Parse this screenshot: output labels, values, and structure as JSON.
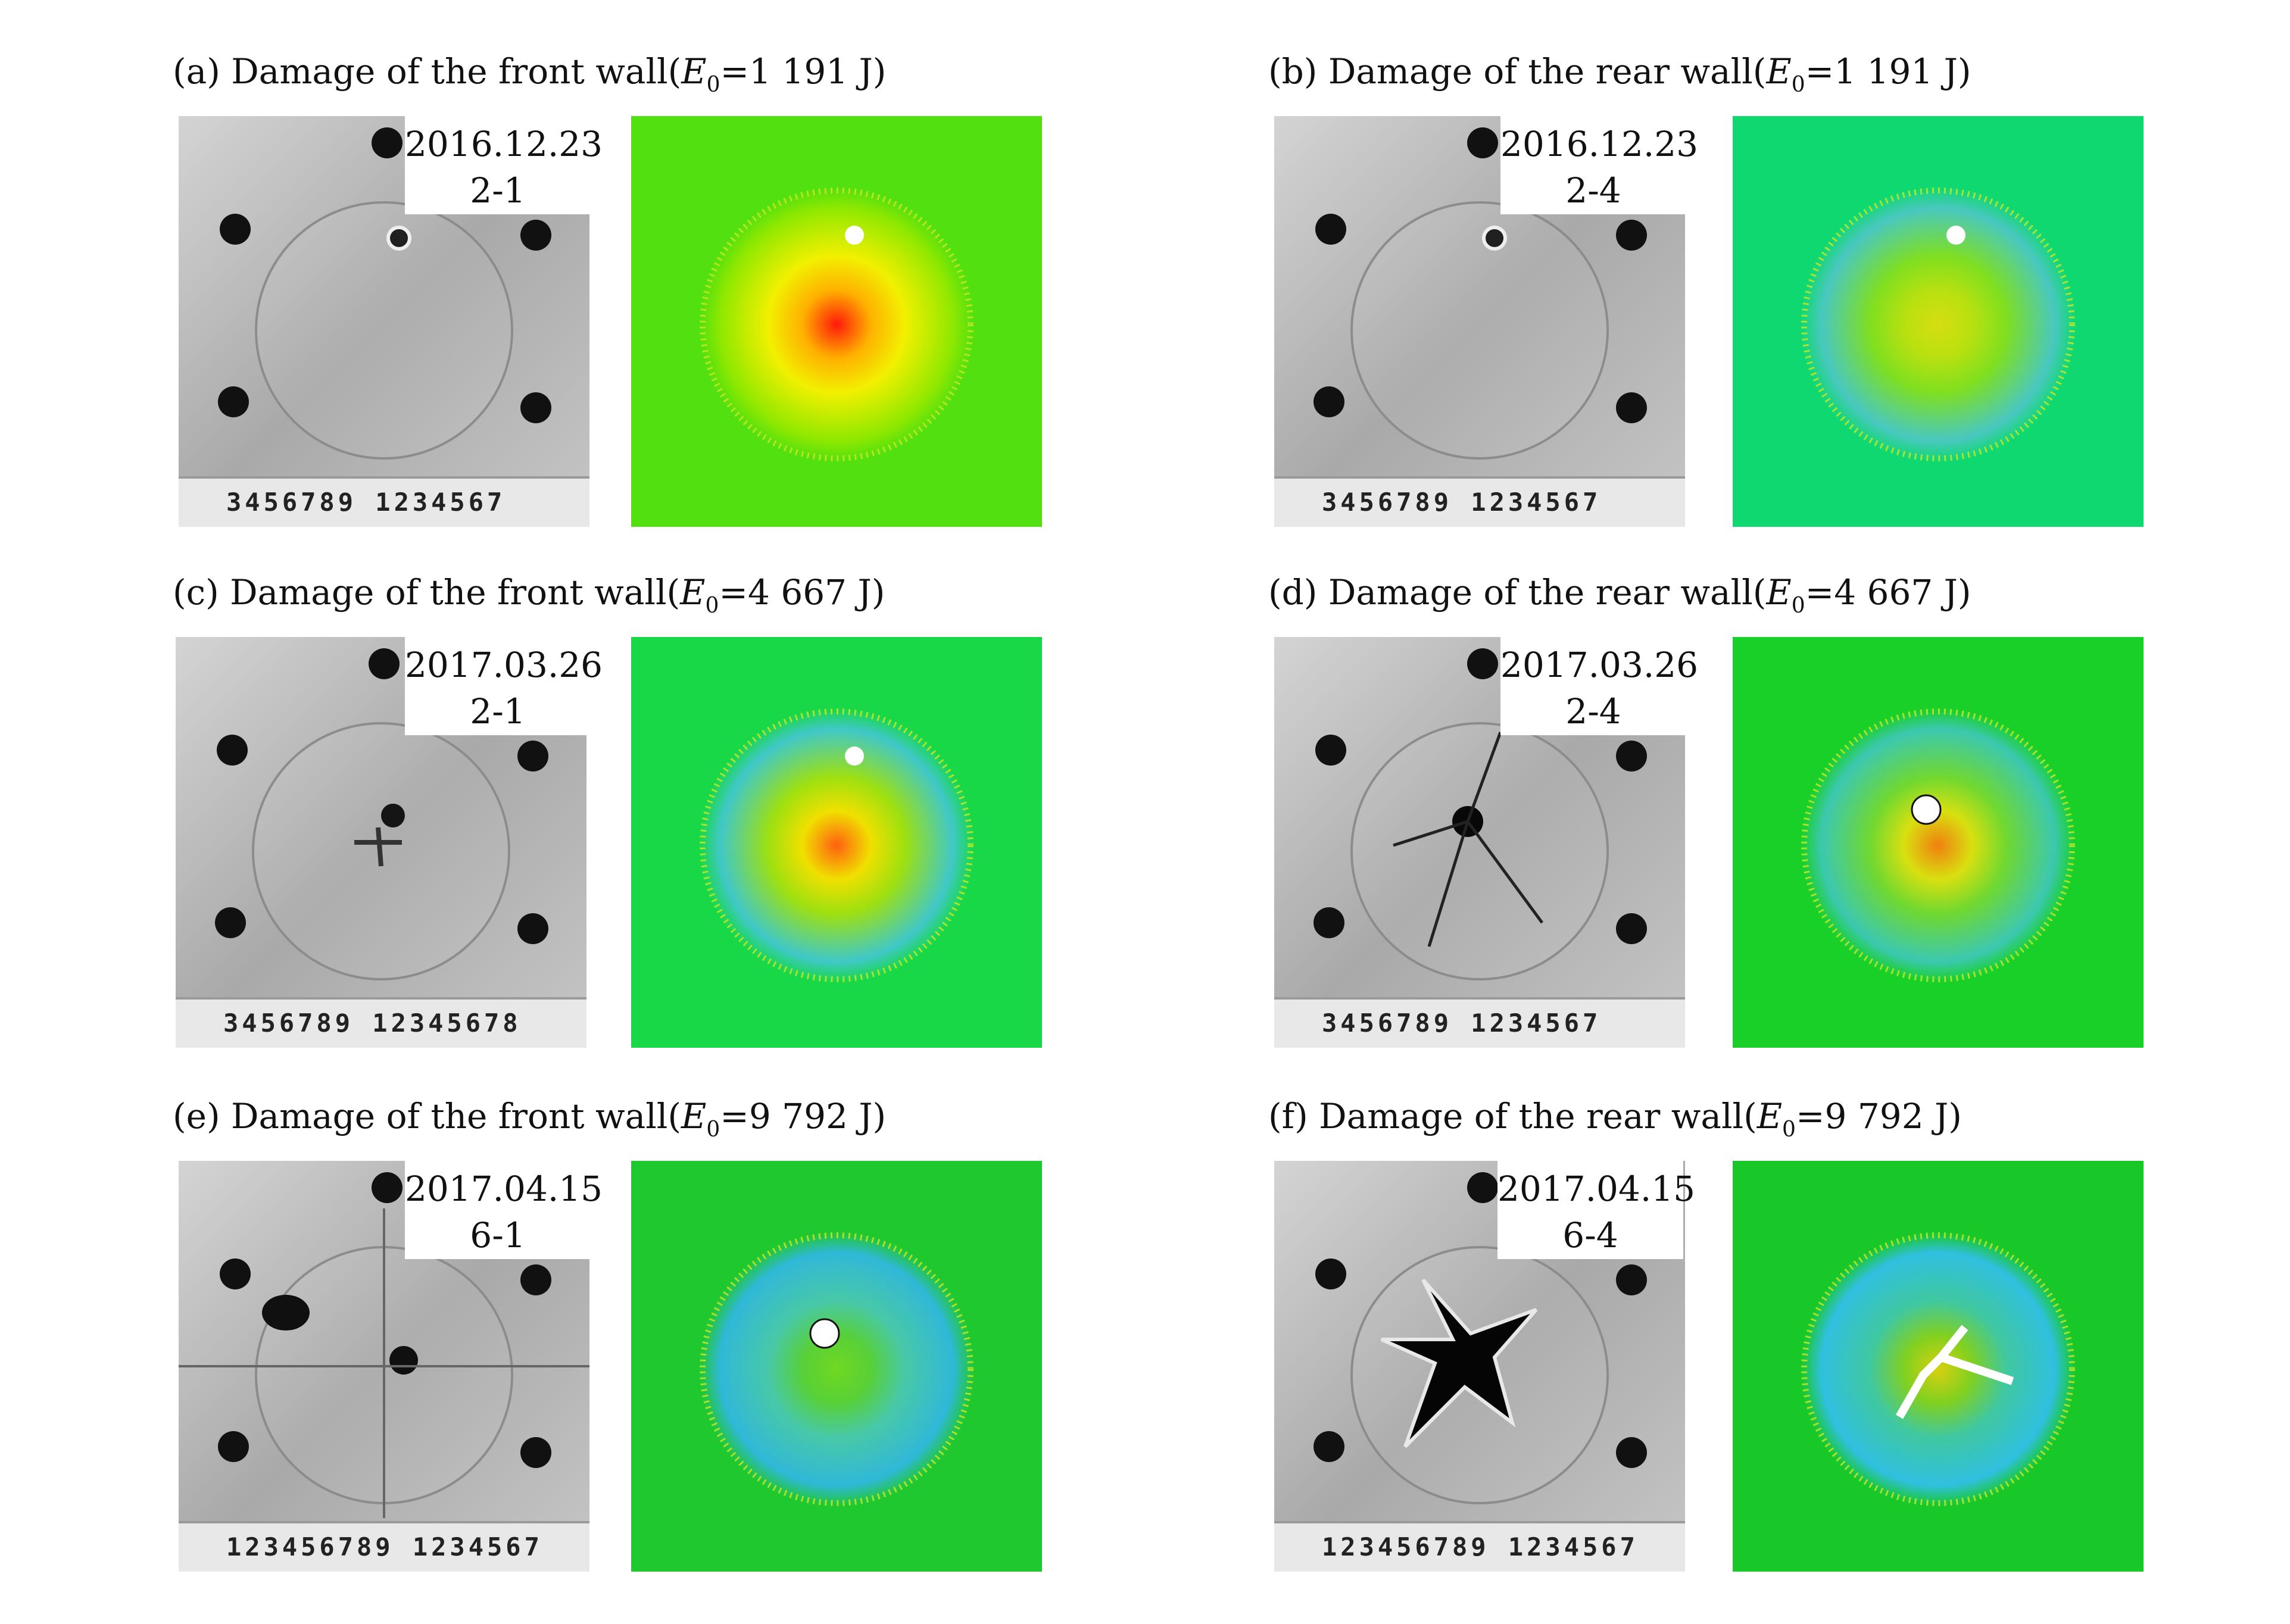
{
  "figure": {
    "panels": [
      {
        "caption_prefix": "(a) Damage of the front wall(",
        "energy_symbol": "E",
        "energy_subscript": "0",
        "energy_value": "=1 191 J)",
        "date": "2016.12.23",
        "specimen": "2-1",
        "ruler_text": "3456789 1234567",
        "damage": "small-dent",
        "map_colors": [
          "#ff1a0a",
          "#ffb000",
          "#f2f000",
          "#8fe800",
          "#52e010"
        ]
      },
      {
        "caption_prefix": "(b) Damage of the rear wall(",
        "energy_symbol": "E",
        "energy_subscript": "0",
        "energy_value": "=1 191 J)",
        "date": "2016.12.23",
        "specimen": "2-4",
        "ruler_text": "3456789 1234567",
        "damage": "small-dent",
        "map_colors": [
          "#d6de10",
          "#b8e010",
          "#7fdf20",
          "#49c8c0",
          "#10d870"
        ]
      },
      {
        "caption_prefix": "(c) Damage of the front wall(",
        "energy_symbol": "E",
        "energy_subscript": "0",
        "energy_value": "=4 667 J)",
        "date": "2017.03.26",
        "specimen": "2-1",
        "ruler_text": "3456789 12345678",
        "damage": "cross-crack",
        "map_colors": [
          "#ff6010",
          "#f0e000",
          "#9ee010",
          "#40c8c8",
          "#18d848"
        ]
      },
      {
        "caption_prefix": "(d) Damage of the rear wall(",
        "energy_symbol": "E",
        "energy_subscript": "0",
        "energy_value": "=4 667 J)",
        "date": "2017.03.26",
        "specimen": "2-4",
        "ruler_text": "3456789 1234567",
        "damage": "petal-crack",
        "map_colors": [
          "#f08010",
          "#d8e010",
          "#70d830",
          "#3cc8b0",
          "#18d028"
        ]
      },
      {
        "caption_prefix": "(e) Damage of the front wall(",
        "energy_symbol": "E",
        "energy_subscript": "0",
        "energy_value": "=9 792 J)",
        "date": "2017.04.15",
        "specimen": "6-1",
        "ruler_text": "123456789 1234567",
        "damage": "perforation",
        "map_colors": [
          "#70d820",
          "#58d038",
          "#48c8a8",
          "#30b8d8",
          "#20c830"
        ]
      },
      {
        "caption_prefix": "(f) Damage of the rear wall(",
        "energy_symbol": "E",
        "energy_subscript": "0",
        "energy_value": "=9 792 J)",
        "date": "2017.04.15",
        "specimen": "6-4",
        "ruler_text": "123456789 1234567",
        "damage": "star-tear",
        "map_colors": [
          "#d8d010",
          "#80d020",
          "#40c8a0",
          "#30c0e0",
          "#18c828"
        ]
      }
    ]
  }
}
